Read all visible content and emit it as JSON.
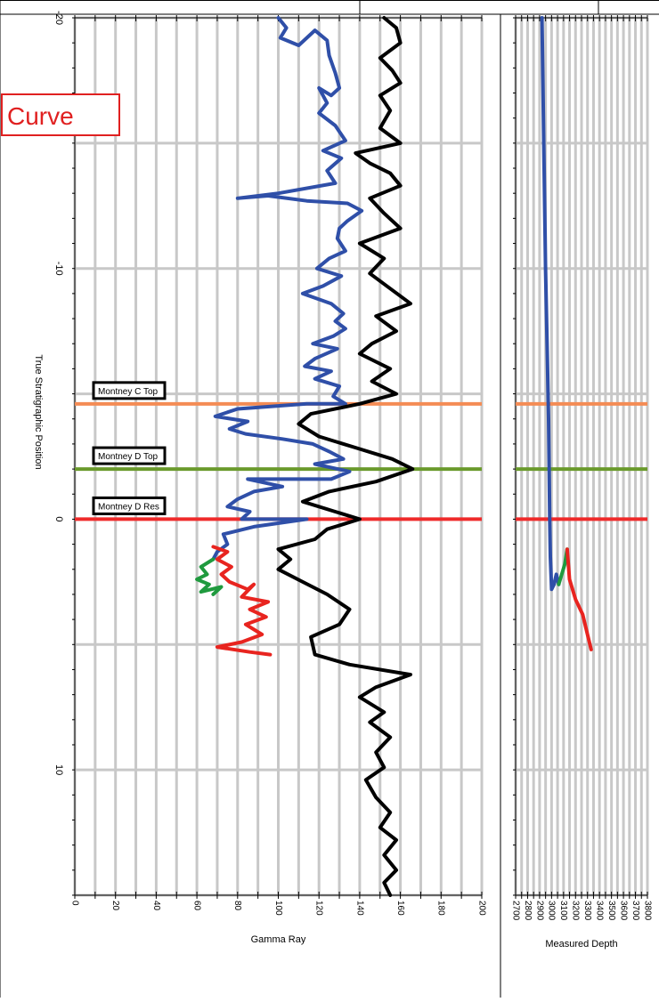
{
  "overlay_label": "Curve",
  "chart_data": [
    {
      "type": "line",
      "title": "",
      "xlabel": "Gamma Ray",
      "ylabel": "True Stratigraphic Position",
      "xlim": [
        0,
        200
      ],
      "ylim": [
        -20,
        15
      ],
      "x_ticks": [
        0,
        20,
        40,
        60,
        80,
        100,
        120,
        140,
        160,
        180,
        200
      ],
      "y_ticks": [
        -20,
        -10,
        0,
        10
      ],
      "grid": true,
      "markers": [
        {
          "label": "Montney C Top",
          "y": -4.6,
          "color": "#f48c55"
        },
        {
          "label": "Montney D Top",
          "y": -2,
          "color": "#6a9a2c"
        },
        {
          "label": "Montney D Res",
          "y": 0,
          "color": "#ef2a2a"
        }
      ],
      "series": [
        {
          "color": "#2f4fa8",
          "points": [
            [
              100,
              -20
            ],
            [
              104,
              -19.6
            ],
            [
              101,
              -19.2
            ],
            [
              110,
              -18.9
            ],
            [
              118,
              -19.5
            ],
            [
              124,
              -19.1
            ],
            [
              125,
              -18.5
            ],
            [
              128,
              -17.8
            ],
            [
              130,
              -17.2
            ],
            [
              126,
              -16.9
            ],
            [
              120,
              -17.2
            ],
            [
              124,
              -16.6
            ],
            [
              120,
              -16.2
            ],
            [
              128,
              -15.7
            ],
            [
              133,
              -15.1
            ],
            [
              122,
              -14.7
            ],
            [
              131,
              -14.4
            ],
            [
              124,
              -13.9
            ],
            [
              128,
              -13.4
            ],
            [
              100,
              -13.0
            ],
            [
              80,
              -12.8
            ],
            [
              95,
              -12.9
            ],
            [
              114,
              -12.7
            ],
            [
              134,
              -12.6
            ],
            [
              141,
              -12.3
            ],
            [
              134,
              -11.9
            ],
            [
              130,
              -11.6
            ],
            [
              129,
              -11.2
            ],
            [
              133,
              -10.7
            ],
            [
              125,
              -10.4
            ],
            [
              119,
              -10.0
            ],
            [
              131,
              -9.7
            ],
            [
              122,
              -9.3
            ],
            [
              112,
              -9.0
            ],
            [
              126,
              -8.6
            ],
            [
              132,
              -8.2
            ],
            [
              128,
              -7.9
            ],
            [
              133,
              -7.6
            ],
            [
              127,
              -7.3
            ],
            [
              117,
              -7.0
            ],
            [
              129,
              -6.8
            ],
            [
              118,
              -6.4
            ],
            [
              113,
              -6.1
            ],
            [
              126,
              -5.9
            ],
            [
              118,
              -5.6
            ],
            [
              130,
              -5.3
            ],
            [
              127,
              -4.9
            ],
            [
              133,
              -4.6
            ],
            [
              114,
              -4.6
            ],
            [
              80,
              -4.4
            ],
            [
              69,
              -4.1
            ],
            [
              85,
              -3.9
            ],
            [
              76,
              -3.6
            ],
            [
              84,
              -3.4
            ],
            [
              102,
              -3.2
            ],
            [
              117,
              -3.0
            ],
            [
              125,
              -2.7
            ],
            [
              132,
              -2.4
            ],
            [
              118,
              -2.2
            ],
            [
              135,
              -1.9
            ],
            [
              126,
              -1.6
            ],
            [
              85,
              -1.6
            ],
            [
              102,
              -1.3
            ],
            [
              88,
              -1.1
            ],
            [
              80,
              -0.8
            ],
            [
              75,
              -0.5
            ],
            [
              86,
              -0.3
            ],
            [
              82,
              0.0
            ],
            [
              114,
              0.0
            ],
            [
              88,
              0.3
            ],
            [
              73,
              0.6
            ],
            [
              75,
              1.0
            ],
            [
              70,
              1.3
            ],
            [
              68,
              1.6
            ]
          ]
        },
        {
          "color": "#1f9a3e",
          "points": [
            [
              68,
              1.6
            ],
            [
              62,
              1.9
            ],
            [
              65,
              2.2
            ],
            [
              60,
              2.4
            ],
            [
              66,
              2.6
            ],
            [
              62,
              2.9
            ],
            [
              72,
              2.7
            ],
            [
              68,
              3.0
            ]
          ]
        },
        {
          "color": "#e8241f",
          "points": [
            [
              68,
              1.1
            ],
            [
              75,
              1.3
            ],
            [
              70,
              1.6
            ],
            [
              77,
              1.9
            ],
            [
              72,
              2.2
            ],
            [
              76,
              2.5
            ],
            [
              85,
              2.8
            ],
            [
              88,
              2.6
            ],
            [
              82,
              3.1
            ],
            [
              95,
              3.3
            ],
            [
              86,
              3.6
            ],
            [
              94,
              3.9
            ],
            [
              84,
              4.2
            ],
            [
              92,
              4.6
            ],
            [
              82,
              4.9
            ],
            [
              70,
              5.1
            ],
            [
              86,
              5.3
            ],
            [
              96,
              5.4
            ]
          ]
        },
        {
          "color": "#000000",
          "points": [
            [
              152,
              -20
            ],
            [
              158,
              -19.6
            ],
            [
              160,
              -19.0
            ],
            [
              150,
              -18.4
            ],
            [
              156,
              -17.9
            ],
            [
              160,
              -17.4
            ],
            [
              150,
              -16.9
            ],
            [
              155,
              -16.3
            ],
            [
              150,
              -15.6
            ],
            [
              160,
              -15.0
            ],
            [
              138,
              -14.6
            ],
            [
              145,
              -14.2
            ],
            [
              155,
              -13.8
            ],
            [
              160,
              -13.3
            ],
            [
              145,
              -12.8
            ],
            [
              152,
              -12.2
            ],
            [
              160,
              -11.6
            ],
            [
              140,
              -11.0
            ],
            [
              152,
              -10.4
            ],
            [
              145,
              -9.8
            ],
            [
              155,
              -9.2
            ],
            [
              165,
              -8.6
            ],
            [
              148,
              -8.1
            ],
            [
              158,
              -7.5
            ],
            [
              146,
              -7.0
            ],
            [
              140,
              -6.6
            ],
            [
              155,
              -6.0
            ],
            [
              146,
              -5.5
            ],
            [
              158,
              -5.0
            ],
            [
              140,
              -4.6
            ],
            [
              116,
              -4.2
            ],
            [
              110,
              -3.8
            ],
            [
              120,
              -3.3
            ],
            [
              140,
              -2.8
            ],
            [
              156,
              -2.4
            ],
            [
              166,
              -2.0
            ],
            [
              148,
              -1.5
            ],
            [
              125,
              -1.1
            ],
            [
              112,
              -0.7
            ],
            [
              128,
              -0.3
            ],
            [
              140,
              0.0
            ],
            [
              124,
              0.4
            ],
            [
              118,
              0.8
            ],
            [
              100,
              1.2
            ],
            [
              106,
              1.6
            ],
            [
              100,
              2.0
            ],
            [
              112,
              2.5
            ],
            [
              124,
              3.0
            ],
            [
              135,
              3.6
            ],
            [
              130,
              4.2
            ],
            [
              116,
              4.7
            ],
            [
              118,
              5.4
            ],
            [
              135,
              5.8
            ],
            [
              165,
              6.2
            ],
            [
              148,
              6.7
            ],
            [
              140,
              7.1
            ],
            [
              152,
              7.7
            ],
            [
              145,
              8.1
            ],
            [
              155,
              8.7
            ],
            [
              148,
              9.3
            ],
            [
              152,
              9.9
            ],
            [
              143,
              10.4
            ],
            [
              148,
              11.1
            ],
            [
              155,
              11.7
            ],
            [
              150,
              12.3
            ],
            [
              158,
              12.8
            ],
            [
              152,
              13.4
            ],
            [
              158,
              14.0
            ],
            [
              152,
              14.5
            ],
            [
              155,
              15.0
            ]
          ]
        }
      ]
    },
    {
      "type": "line",
      "title": "",
      "xlabel": "Measured Depth",
      "ylabel": "",
      "xlim": [
        2700,
        3800
      ],
      "ylim": [
        -20,
        15
      ],
      "x_ticks": [
        2700,
        2800,
        2900,
        3000,
        3100,
        3200,
        3300,
        3400,
        3500,
        3600,
        3700,
        3800
      ],
      "grid": true,
      "markers": [
        {
          "label": "",
          "y": -4.6,
          "color": "#f48c55"
        },
        {
          "label": "",
          "y": -2,
          "color": "#6a9a2c"
        },
        {
          "label": "",
          "y": 0,
          "color": "#ef2a2a"
        }
      ],
      "series": [
        {
          "color": "#2f4fa8",
          "points": [
            [
              2920,
              -20
            ],
            [
              2950,
              -10
            ],
            [
              2975,
              -4
            ],
            [
              2985,
              0
            ],
            [
              2990,
              1.5
            ],
            [
              3000,
              2.8
            ],
            [
              3020,
              2.6
            ],
            [
              3040,
              2.2
            ],
            [
              3060,
              2.6
            ]
          ]
        },
        {
          "color": "#1f9a3e",
          "points": [
            [
              3060,
              2.6
            ],
            [
              3110,
              1.8
            ],
            [
              3130,
              1.2
            ]
          ]
        },
        {
          "color": "#e8241f",
          "points": [
            [
              3130,
              1.2
            ],
            [
              3150,
              2.4
            ],
            [
              3200,
              3.2
            ],
            [
              3260,
              3.8
            ],
            [
              3300,
              4.6
            ],
            [
              3330,
              5.2
            ]
          ]
        }
      ]
    }
  ]
}
